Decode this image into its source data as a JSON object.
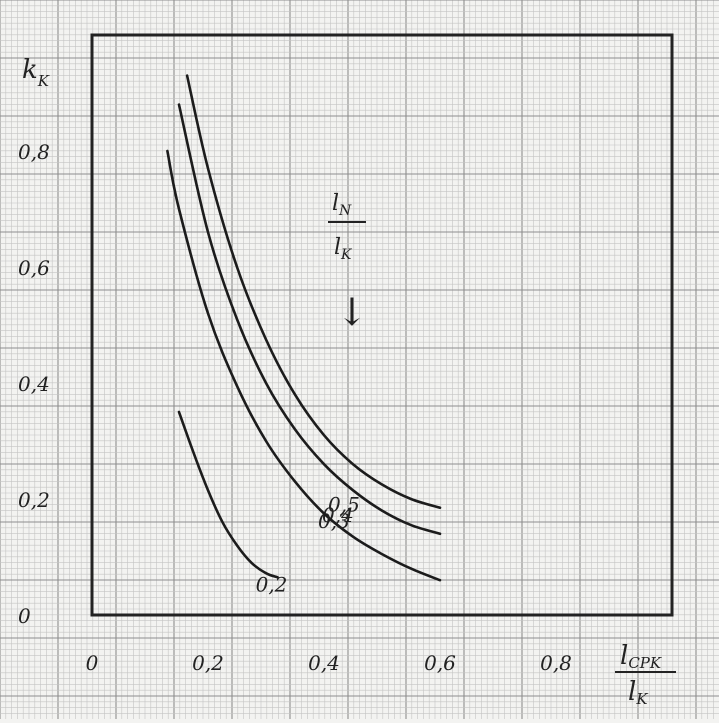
{
  "chart_data": {
    "type": "line",
    "title": "",
    "y_axis": {
      "symbol": "k",
      "subscript": "K"
    },
    "x_axis": {
      "numerator": {
        "symbol": "l",
        "subscript": "CPK"
      },
      "denominator": {
        "symbol": "l",
        "subscript": "K"
      }
    },
    "parameter": {
      "numerator": {
        "symbol": "l",
        "subscript": "N"
      },
      "denominator": {
        "symbol": "l",
        "subscript": "K"
      },
      "arrow": "↓"
    },
    "xlim": [
      0,
      1.0
    ],
    "ylim": [
      0,
      1.0
    ],
    "x_ticks": [
      {
        "value": 0,
        "label": "0"
      },
      {
        "value": 0.2,
        "label": "0,2"
      },
      {
        "value": 0.4,
        "label": "0,4"
      },
      {
        "value": 0.6,
        "label": "0,6"
      },
      {
        "value": 0.8,
        "label": "0,8"
      }
    ],
    "y_ticks": [
      {
        "value": 0,
        "label": "0"
      },
      {
        "value": 0.2,
        "label": "0,2"
      },
      {
        "value": 0.4,
        "label": "0,4"
      },
      {
        "value": 0.6,
        "label": "0,6"
      },
      {
        "value": 0.8,
        "label": "0,8"
      }
    ],
    "grid": true,
    "series": [
      {
        "name": "0,5",
        "points": [
          [
            0.164,
            0.93
          ],
          [
            0.2,
            0.77
          ],
          [
            0.25,
            0.6
          ],
          [
            0.3,
            0.475
          ],
          [
            0.35,
            0.38
          ],
          [
            0.4,
            0.31
          ],
          [
            0.45,
            0.26
          ],
          [
            0.5,
            0.225
          ],
          [
            0.55,
            0.2
          ],
          [
            0.6,
            0.185
          ]
        ]
      },
      {
        "name": "0,4",
        "points": [
          [
            0.15,
            0.88
          ],
          [
            0.2,
            0.66
          ],
          [
            0.25,
            0.51
          ],
          [
            0.3,
            0.4
          ],
          [
            0.35,
            0.32
          ],
          [
            0.4,
            0.26
          ],
          [
            0.45,
            0.215
          ],
          [
            0.5,
            0.18
          ],
          [
            0.55,
            0.155
          ],
          [
            0.6,
            0.14
          ]
        ]
      },
      {
        "name": "0,3",
        "points": [
          [
            0.13,
            0.8
          ],
          [
            0.15,
            0.7
          ],
          [
            0.2,
            0.52
          ],
          [
            0.25,
            0.395
          ],
          [
            0.3,
            0.3
          ],
          [
            0.35,
            0.23
          ],
          [
            0.4,
            0.175
          ],
          [
            0.45,
            0.135
          ],
          [
            0.5,
            0.105
          ],
          [
            0.55,
            0.08
          ],
          [
            0.6,
            0.06
          ]
        ]
      },
      {
        "name": "0,2",
        "points": [
          [
            0.15,
            0.35
          ],
          [
            0.175,
            0.28
          ],
          [
            0.2,
            0.215
          ],
          [
            0.225,
            0.16
          ],
          [
            0.25,
            0.12
          ],
          [
            0.275,
            0.09
          ],
          [
            0.3,
            0.072
          ],
          [
            0.32,
            0.065
          ]
        ]
      }
    ]
  }
}
